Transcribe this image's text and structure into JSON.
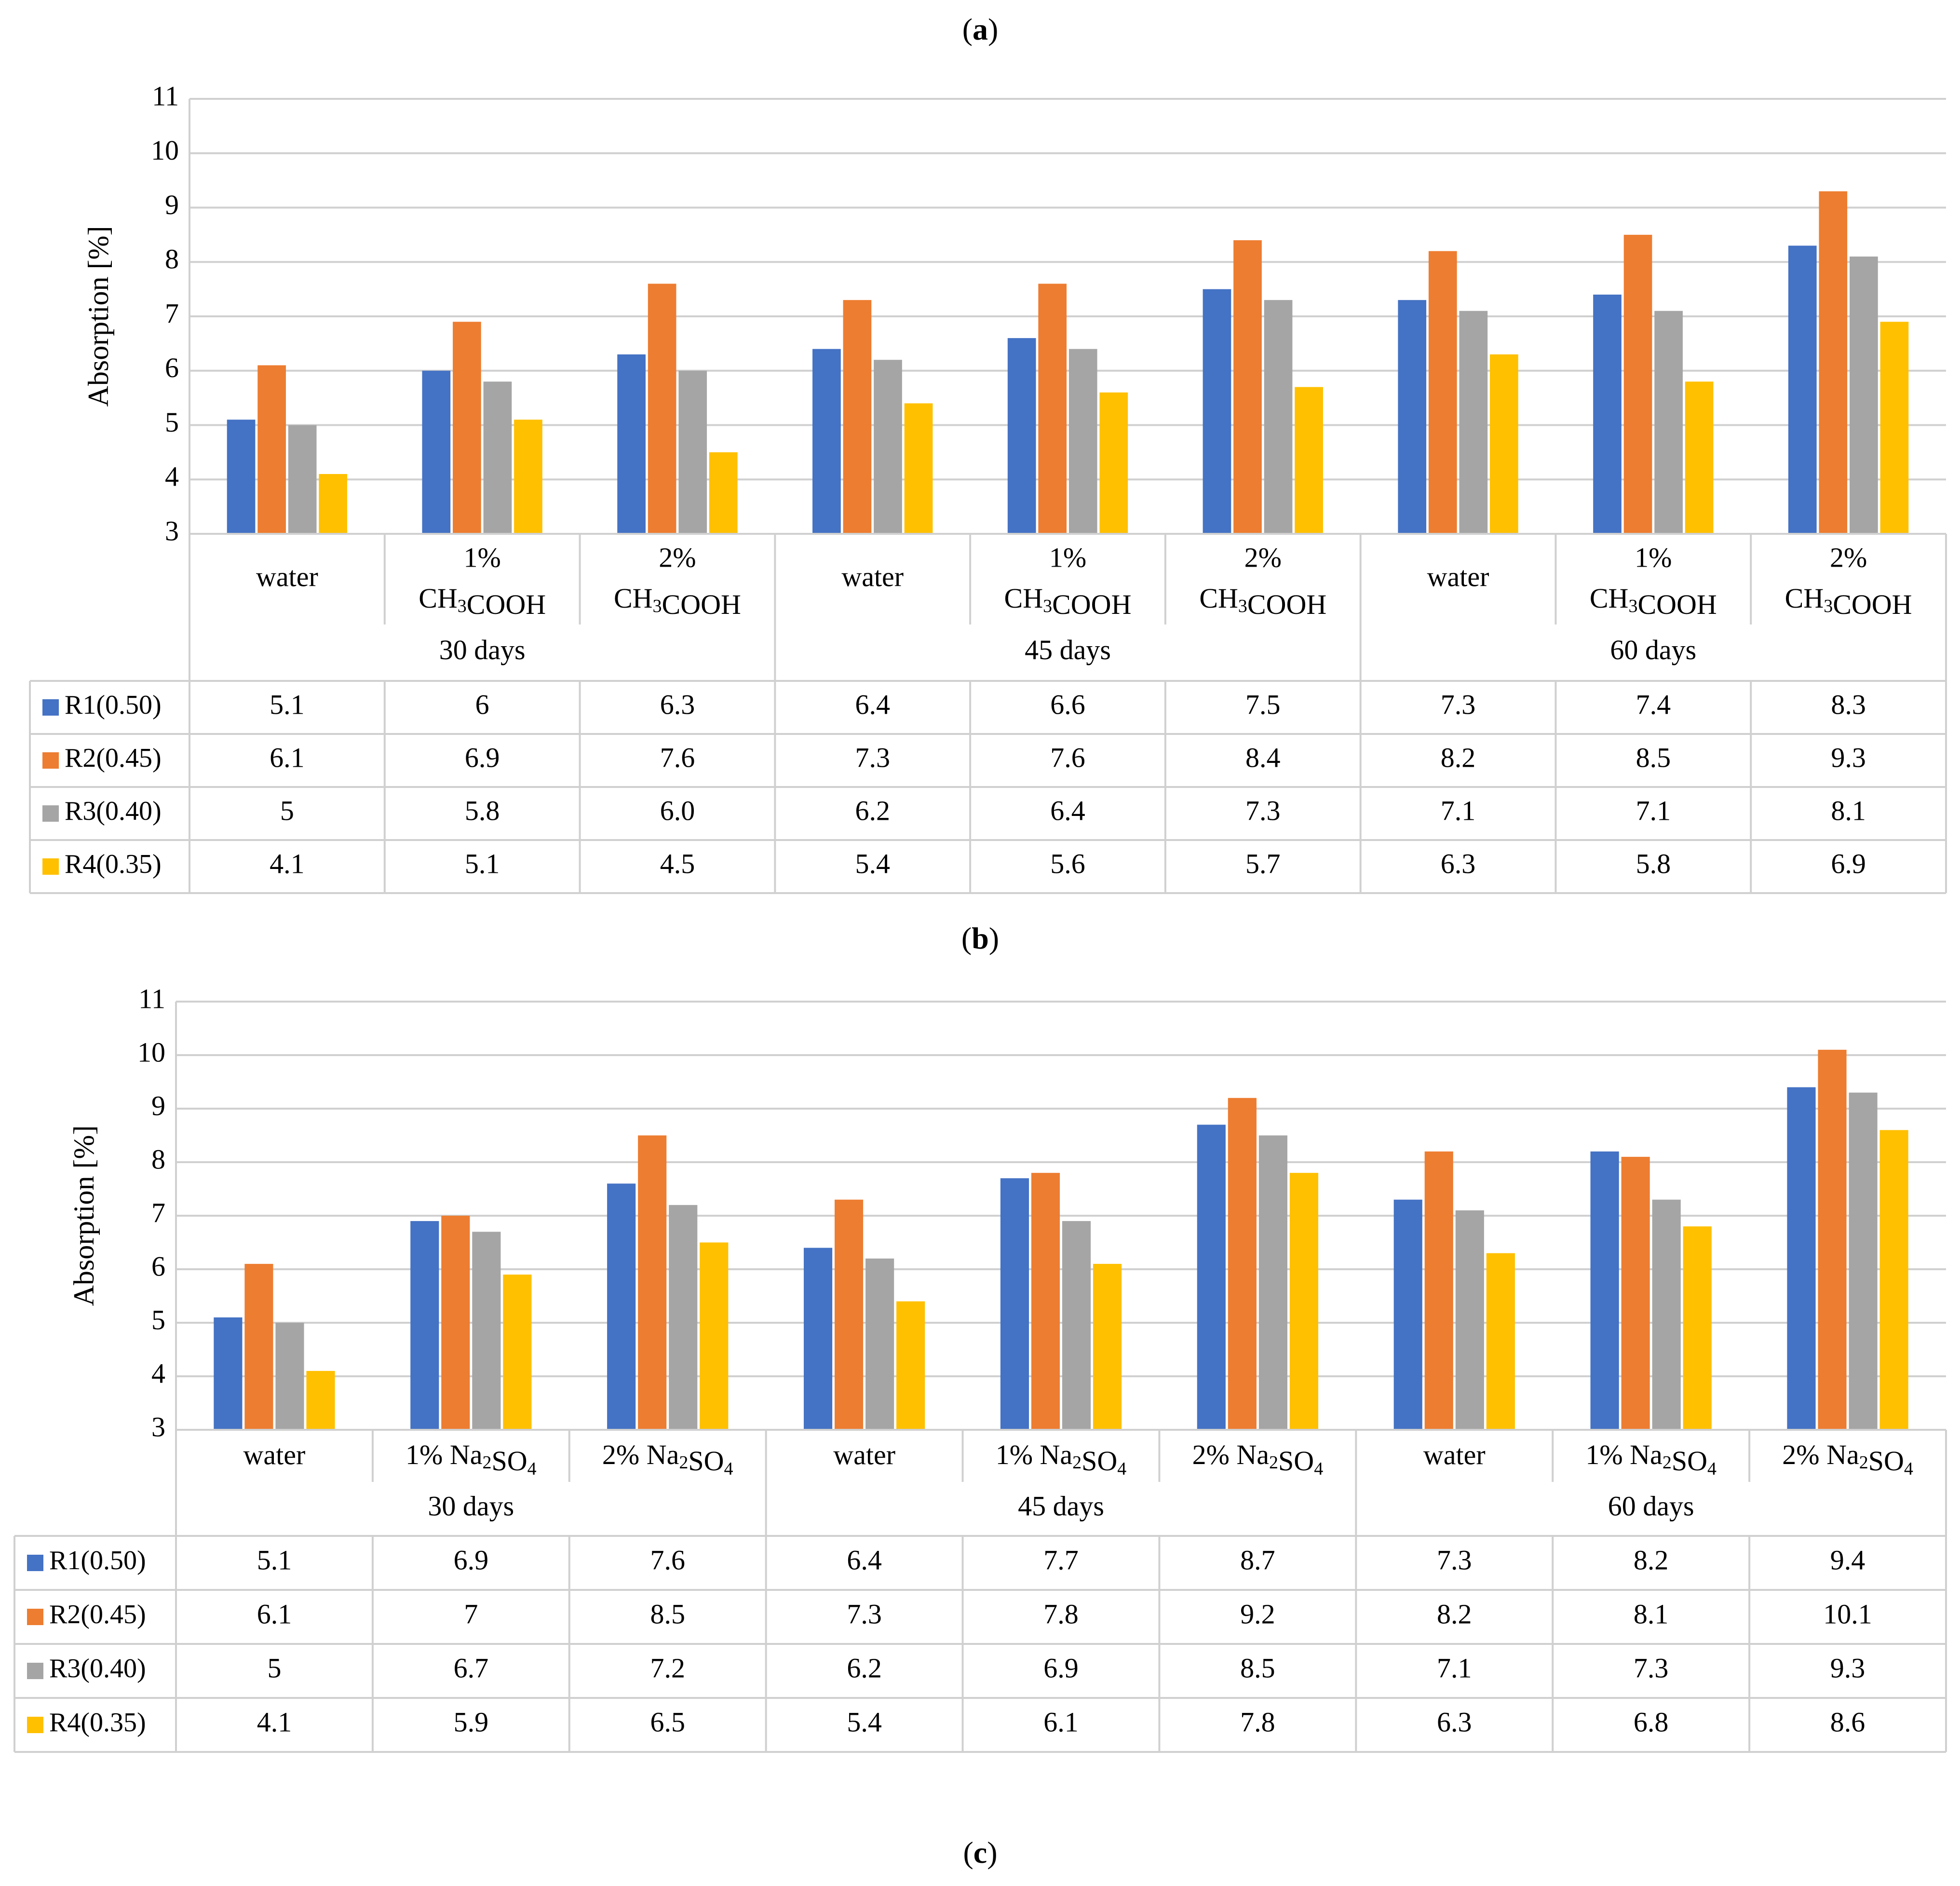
{
  "panel_labels": [
    "a",
    "b",
    "c"
  ],
  "colors": {
    "R1": "#4472C4",
    "R2": "#ED7D31",
    "R3": "#A5A5A5",
    "R4": "#FFC000"
  },
  "chart_data": [
    {
      "type": "bar",
      "ylabel": "Absorption [%]",
      "ylim": [
        3,
        11
      ],
      "yticks": [
        3,
        4,
        5,
        6,
        7,
        8,
        9,
        10,
        11
      ],
      "grid": true,
      "legend": "table-left",
      "category_lines": [
        [
          "water",
          ""
        ],
        [
          "1%",
          "CH3COOH"
        ],
        [
          "2%",
          "CH3COOH"
        ],
        [
          "water",
          ""
        ],
        [
          "1%",
          "CH3COOH"
        ],
        [
          "2%",
          "CH3COOH"
        ],
        [
          "water",
          ""
        ],
        [
          "1%",
          "CH3COOH"
        ],
        [
          "2%",
          "CH3COOH"
        ]
      ],
      "categories": [
        "water",
        "1% CH3COOH",
        "2% CH3COOH",
        "water",
        "1% CH3COOH",
        "2% CH3COOH",
        "water",
        "1% CH3COOH",
        "2% CH3COOH"
      ],
      "groups": [
        "30 days",
        "45 days",
        "60 days"
      ],
      "series": [
        {
          "name": "R1(0.50)",
          "values": [
            5.1,
            6,
            6.3,
            6.4,
            6.6,
            7.5,
            7.3,
            7.4,
            8.3
          ],
          "labels": [
            "5.1",
            "6",
            "6.3",
            "6.4",
            "6.6",
            "7.5",
            "7.3",
            "7.4",
            "8.3"
          ]
        },
        {
          "name": "R2(0.45)",
          "values": [
            6.1,
            6.9,
            7.6,
            7.3,
            7.6,
            8.4,
            8.2,
            8.5,
            9.3
          ],
          "labels": [
            "6.1",
            "6.9",
            "7.6",
            "7.3",
            "7.6",
            "8.4",
            "8.2",
            "8.5",
            "9.3"
          ]
        },
        {
          "name": "R3(0.40)",
          "values": [
            5,
            5.8,
            6.0,
            6.2,
            6.4,
            7.3,
            7.1,
            7.1,
            8.1
          ],
          "labels": [
            "5",
            "5.8",
            "6.0",
            "6.2",
            "6.4",
            "7.3",
            "7.1",
            "7.1",
            "8.1"
          ]
        },
        {
          "name": "R4(0.35)",
          "values": [
            4.1,
            5.1,
            4.5,
            5.4,
            5.6,
            5.7,
            6.3,
            5.8,
            6.9
          ],
          "labels": [
            "4.1",
            "5.1",
            "4.5",
            "5.4",
            "5.6",
            "5.7",
            "6.3",
            "5.8",
            "6.9"
          ]
        }
      ]
    },
    {
      "type": "bar",
      "ylabel": "Absorption [%]",
      "ylim": [
        3,
        11
      ],
      "yticks": [
        3,
        4,
        5,
        6,
        7,
        8,
        9,
        10,
        11
      ],
      "grid": true,
      "legend": "table-left",
      "category_lines": [
        [
          "water"
        ],
        [
          "1% Na2SO4"
        ],
        [
          "2% Na2SO4"
        ],
        [
          "water"
        ],
        [
          "1% Na2SO4"
        ],
        [
          "2% Na2SO4"
        ],
        [
          "water"
        ],
        [
          "1% Na2SO4"
        ],
        [
          "2% Na2SO4"
        ]
      ],
      "categories": [
        "water",
        "1% Na2SO4",
        "2% Na2SO4",
        "water",
        "1% Na2SO4",
        "2% Na2SO4",
        "water",
        "1% Na2SO4",
        "2% Na2SO4"
      ],
      "groups": [
        "30 days",
        "45 days",
        "60 days"
      ],
      "series": [
        {
          "name": "R1(0.50)",
          "values": [
            5.1,
            6.9,
            7.6,
            6.4,
            7.7,
            8.7,
            7.3,
            8.2,
            9.4
          ],
          "labels": [
            "5.1",
            "6.9",
            "7.6",
            "6.4",
            "7.7",
            "8.7",
            "7.3",
            "8.2",
            "9.4"
          ]
        },
        {
          "name": "R2(0.45)",
          "values": [
            6.1,
            7,
            8.5,
            7.3,
            7.8,
            9.2,
            8.2,
            8.1,
            10.1
          ],
          "labels": [
            "6.1",
            "7",
            "8.5",
            "7.3",
            "7.8",
            "9.2",
            "8.2",
            "8.1",
            "10.1"
          ]
        },
        {
          "name": "R3(0.40)",
          "values": [
            5,
            6.7,
            7.2,
            6.2,
            6.9,
            8.5,
            7.1,
            7.3,
            9.3
          ],
          "labels": [
            "5",
            "6.7",
            "7.2",
            "6.2",
            "6.9",
            "8.5",
            "7.1",
            "7.3",
            "9.3"
          ]
        },
        {
          "name": "R4(0.35)",
          "values": [
            4.1,
            5.9,
            6.5,
            5.4,
            6.1,
            7.8,
            6.3,
            6.8,
            8.6
          ],
          "labels": [
            "4.1",
            "5.9",
            "6.5",
            "5.4",
            "6.1",
            "7.8",
            "6.3",
            "6.8",
            "8.6"
          ]
        }
      ]
    }
  ]
}
